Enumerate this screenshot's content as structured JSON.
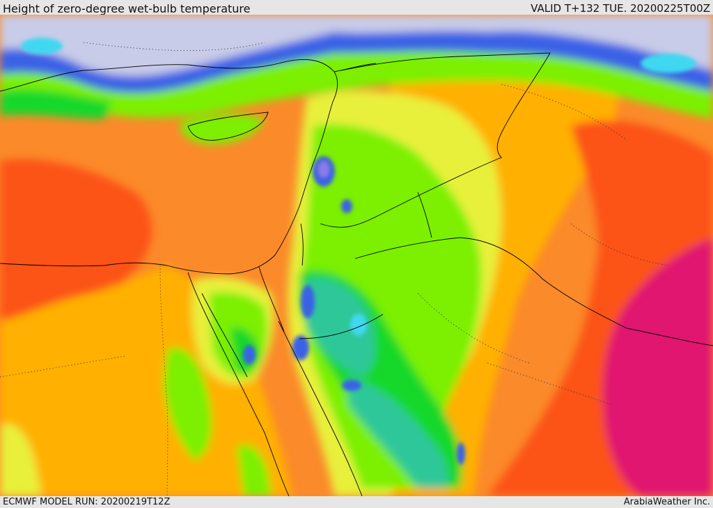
{
  "header": {
    "title": "Height of zero-degree wet-bulb temperature",
    "valid": "VALID T+132 TUE. 20200225T00Z"
  },
  "footer": {
    "model_run": "ECMWF MODEL RUN: 20200219T12Z",
    "credit": "ArabiaWeather Inc."
  },
  "palette": {
    "ocean_cold": "#c8cce8",
    "violet": "#8a7de8",
    "blue": "#3a62e6",
    "cyan": "#3fd8f0",
    "teal": "#2ec79a",
    "green": "#14d82a",
    "lime": "#7cf000",
    "yellow": "#e8f03a",
    "amber": "#ffb000",
    "orange": "#fb8a2a",
    "red_orange": "#fc5316",
    "magenta": "#e01870"
  }
}
